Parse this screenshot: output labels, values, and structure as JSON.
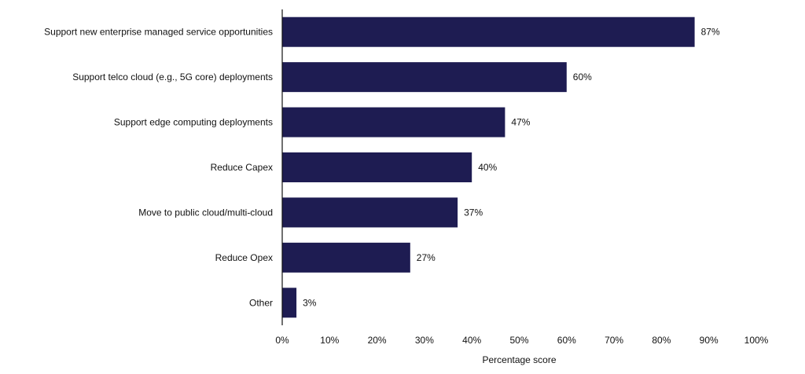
{
  "chart_data": {
    "type": "bar",
    "orientation": "horizontal",
    "categories": [
      "Support new enterprise managed service opportunities",
      "Support telco cloud (e.g., 5G core) deployments",
      "Support edge computing deployments",
      "Reduce Capex",
      "Move to public cloud/multi-cloud",
      "Reduce Opex",
      "Other"
    ],
    "values": [
      87,
      60,
      47,
      40,
      37,
      27,
      3
    ],
    "value_labels": [
      "87%",
      "60%",
      "47%",
      "40%",
      "37%",
      "27%",
      "3%"
    ],
    "xlabel": "Percentage score",
    "ylabel": "",
    "title": "",
    "xlim": [
      0,
      100
    ],
    "xticks": [
      "0%",
      "10%",
      "20%",
      "30%",
      "40%",
      "50%",
      "60%",
      "70%",
      "80%",
      "90%",
      "100%"
    ],
    "grid": false,
    "bar_color": "#1e1c52"
  }
}
